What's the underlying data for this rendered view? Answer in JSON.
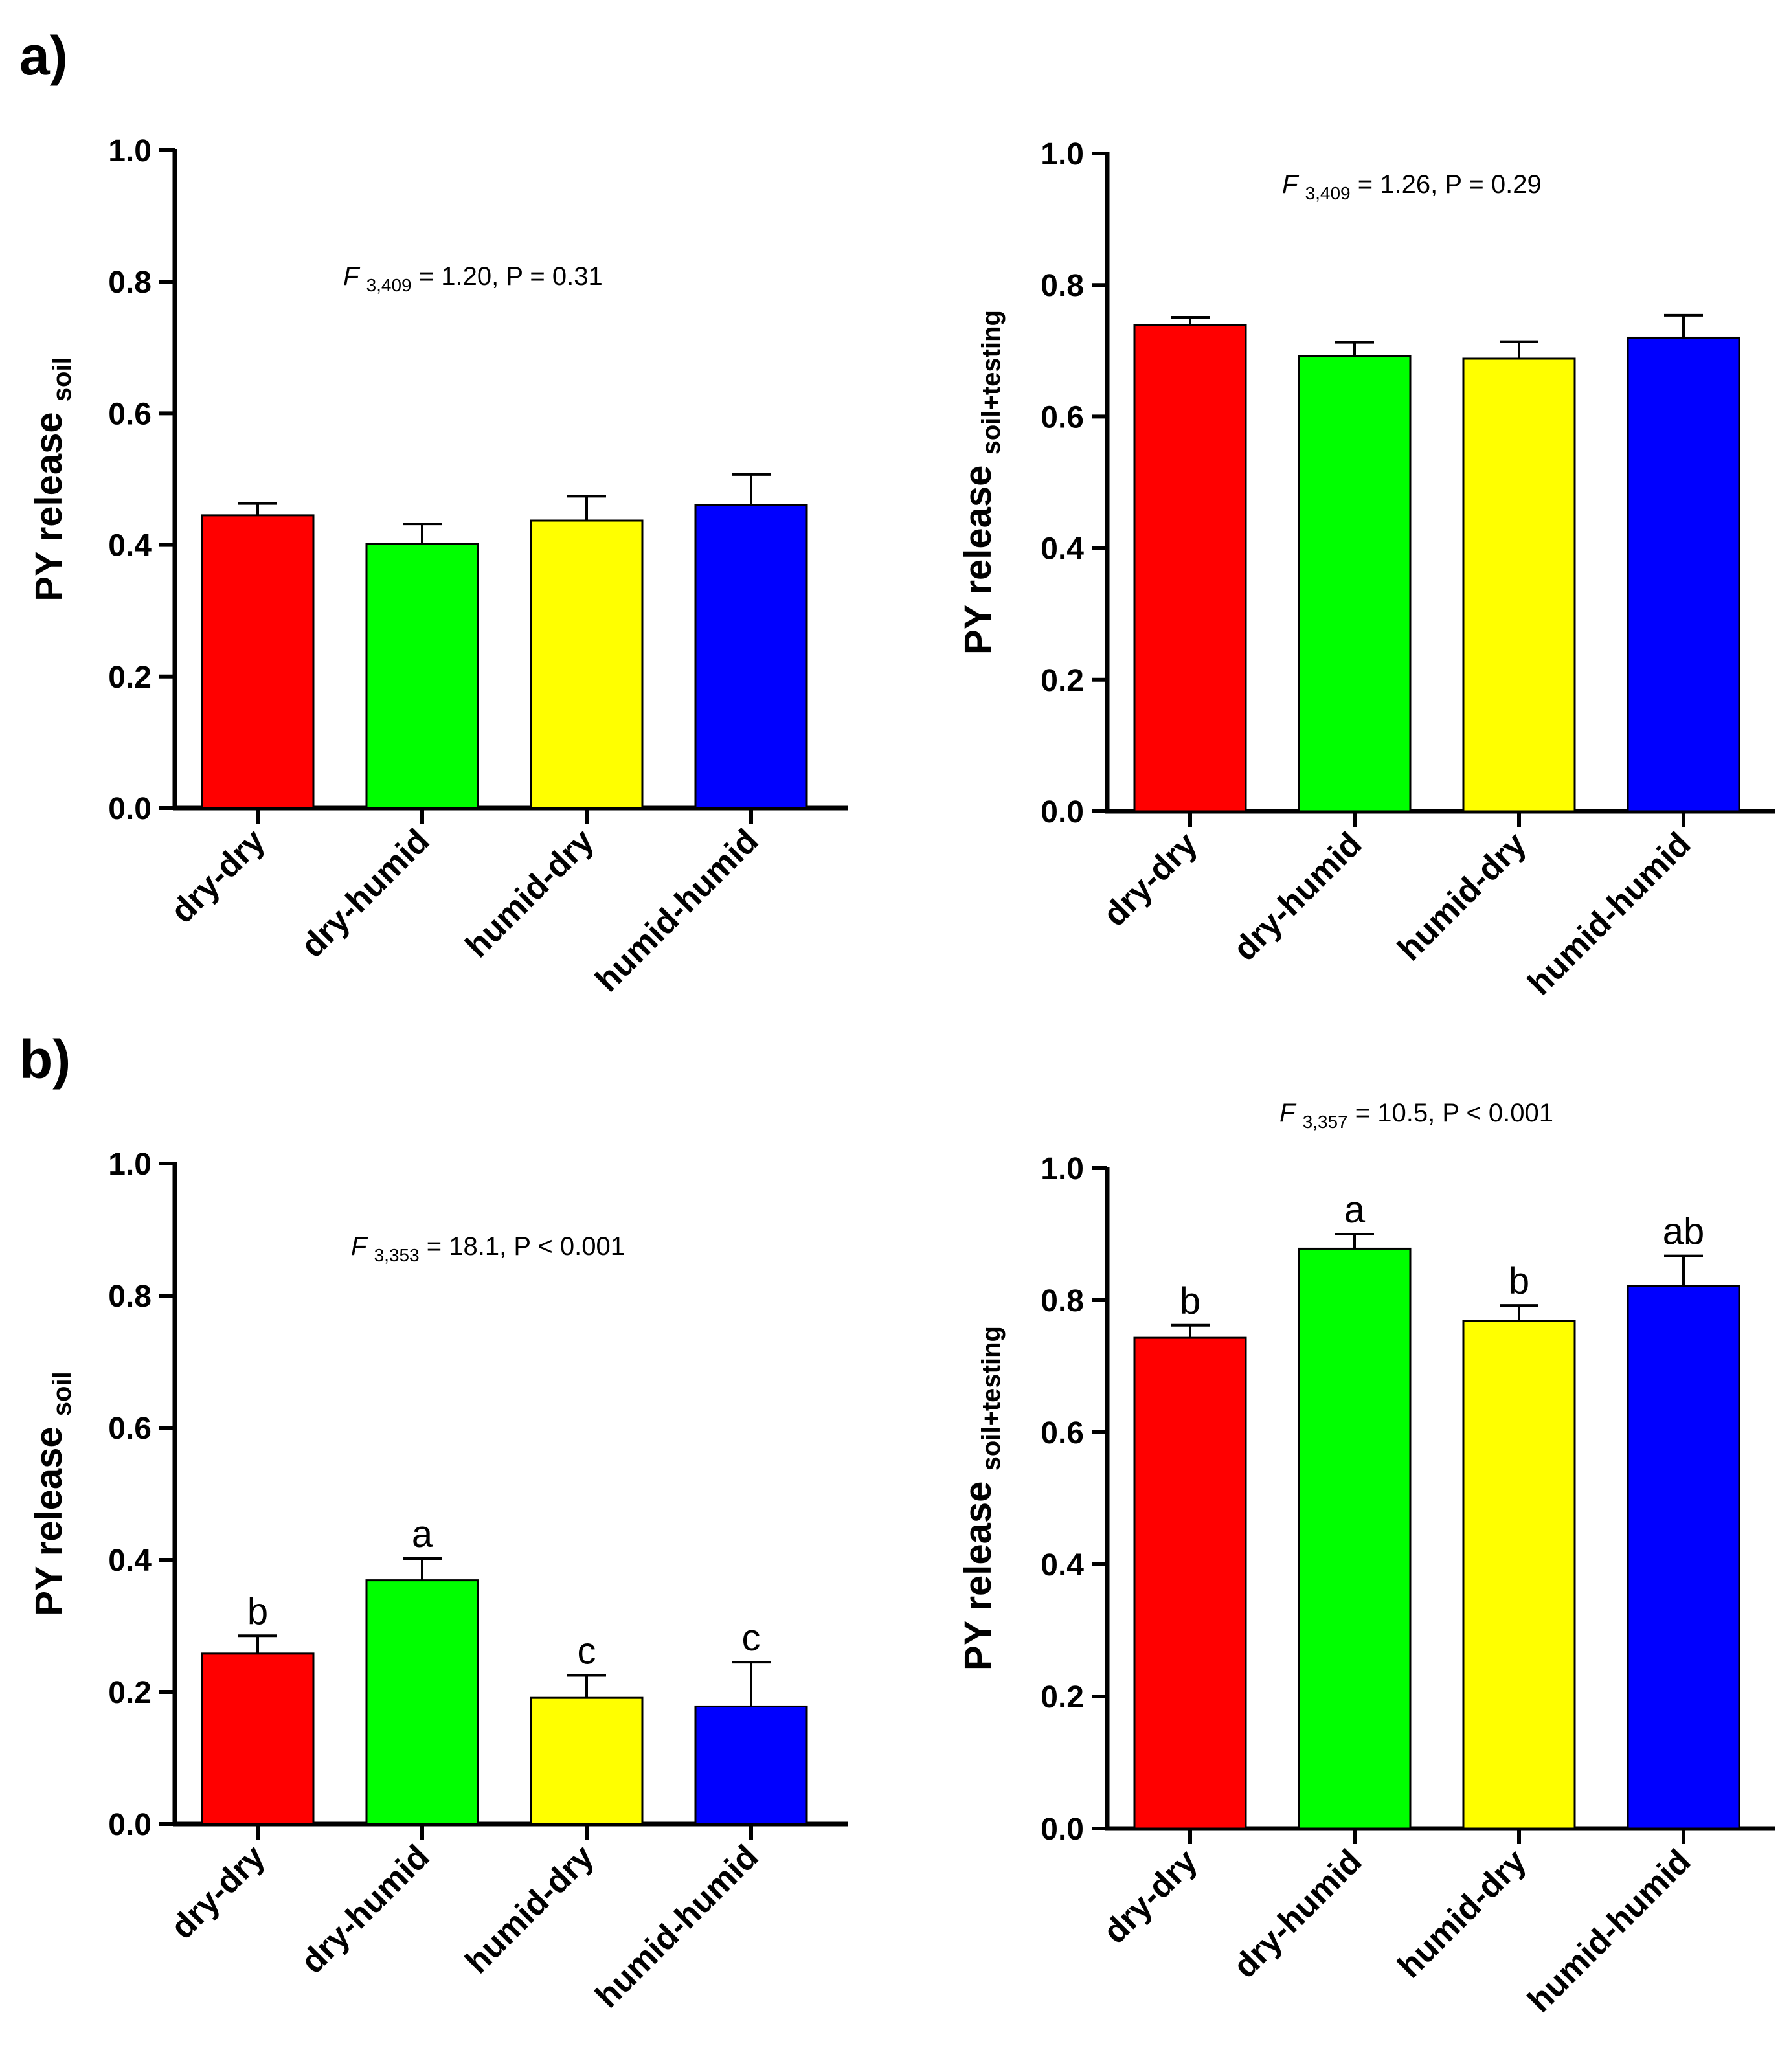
{
  "panels": [
    {
      "label": "a)"
    },
    {
      "label": "b)"
    }
  ],
  "chart_data": [
    {
      "type": "bar",
      "panel": "a)",
      "position": "top-left",
      "categories": [
        "dry-dry",
        "dry-humid",
        "humid-dry",
        "humid-humid"
      ],
      "values": [
        0.445,
        0.402,
        0.437,
        0.461
      ],
      "errors": [
        0.018,
        0.03,
        0.037,
        0.046
      ],
      "colors": [
        "#ff0000",
        "#00ff00",
        "#ffff00",
        "#0000ff"
      ],
      "letters": [],
      "ylabel_main": "PY release",
      "ylabel_sub": "soil",
      "stat_F": "F",
      "stat_df": "3,409",
      "stat_rest": "= 1.20, P = 0.31",
      "ylim": [
        0,
        1.0
      ],
      "yticks": [
        "0.0",
        "0.2",
        "0.4",
        "0.6",
        "0.8",
        "1.0"
      ]
    },
    {
      "type": "bar",
      "panel": "a)",
      "position": "top-right",
      "categories": [
        "dry-dry",
        "dry-humid",
        "humid-dry",
        "humid-humid"
      ],
      "values": [
        0.739,
        0.692,
        0.688,
        0.72
      ],
      "errors": [
        0.012,
        0.021,
        0.026,
        0.034
      ],
      "colors": [
        "#ff0000",
        "#00ff00",
        "#ffff00",
        "#0000ff"
      ],
      "letters": [],
      "ylabel_main": "PY release",
      "ylabel_sub": "soil+testing",
      "stat_F": "F",
      "stat_df": "3,409",
      "stat_rest": "= 1.26, P = 0.29",
      "ylim": [
        0,
        1.0
      ],
      "yticks": [
        "0.0",
        "0.2",
        "0.4",
        "0.6",
        "0.8",
        "1.0"
      ]
    },
    {
      "type": "bar",
      "panel": "b)",
      "position": "bottom-left",
      "categories": [
        "dry-dry",
        "dry-humid",
        "humid-dry",
        "humid-humid"
      ],
      "values": [
        0.258,
        0.369,
        0.191,
        0.178
      ],
      "errors": [
        0.027,
        0.033,
        0.034,
        0.067
      ],
      "colors": [
        "#ff0000",
        "#00ff00",
        "#ffff00",
        "#0000ff"
      ],
      "letters": [
        "b",
        "a",
        "c",
        "c"
      ],
      "ylabel_main": "PY release",
      "ylabel_sub": "soil",
      "stat_F": "F",
      "stat_df": "3,353",
      "stat_rest": "= 18.1, P < 0.001",
      "ylim": [
        0,
        1.0
      ],
      "yticks": [
        "0.0",
        "0.2",
        "0.4",
        "0.6",
        "0.8",
        "1.0"
      ]
    },
    {
      "type": "bar",
      "panel": "b)",
      "position": "bottom-right",
      "categories": [
        "dry-dry",
        "dry-humid",
        "humid-dry",
        "humid-humid"
      ],
      "values": [
        0.743,
        0.878,
        0.769,
        0.822
      ],
      "errors": [
        0.019,
        0.022,
        0.023,
        0.045
      ],
      "colors": [
        "#ff0000",
        "#00ff00",
        "#ffff00",
        "#0000ff"
      ],
      "letters": [
        "b",
        "a",
        "b",
        "ab"
      ],
      "ylabel_main": "PY release",
      "ylabel_sub": "soil+testing",
      "stat_F": "F",
      "stat_df": "3,357",
      "stat_rest": "= 10.5, P < 0.001",
      "ylim": [
        0,
        1.0
      ],
      "yticks": [
        "0.0",
        "0.2",
        "0.4",
        "0.6",
        "0.8",
        "1.0"
      ]
    }
  ]
}
